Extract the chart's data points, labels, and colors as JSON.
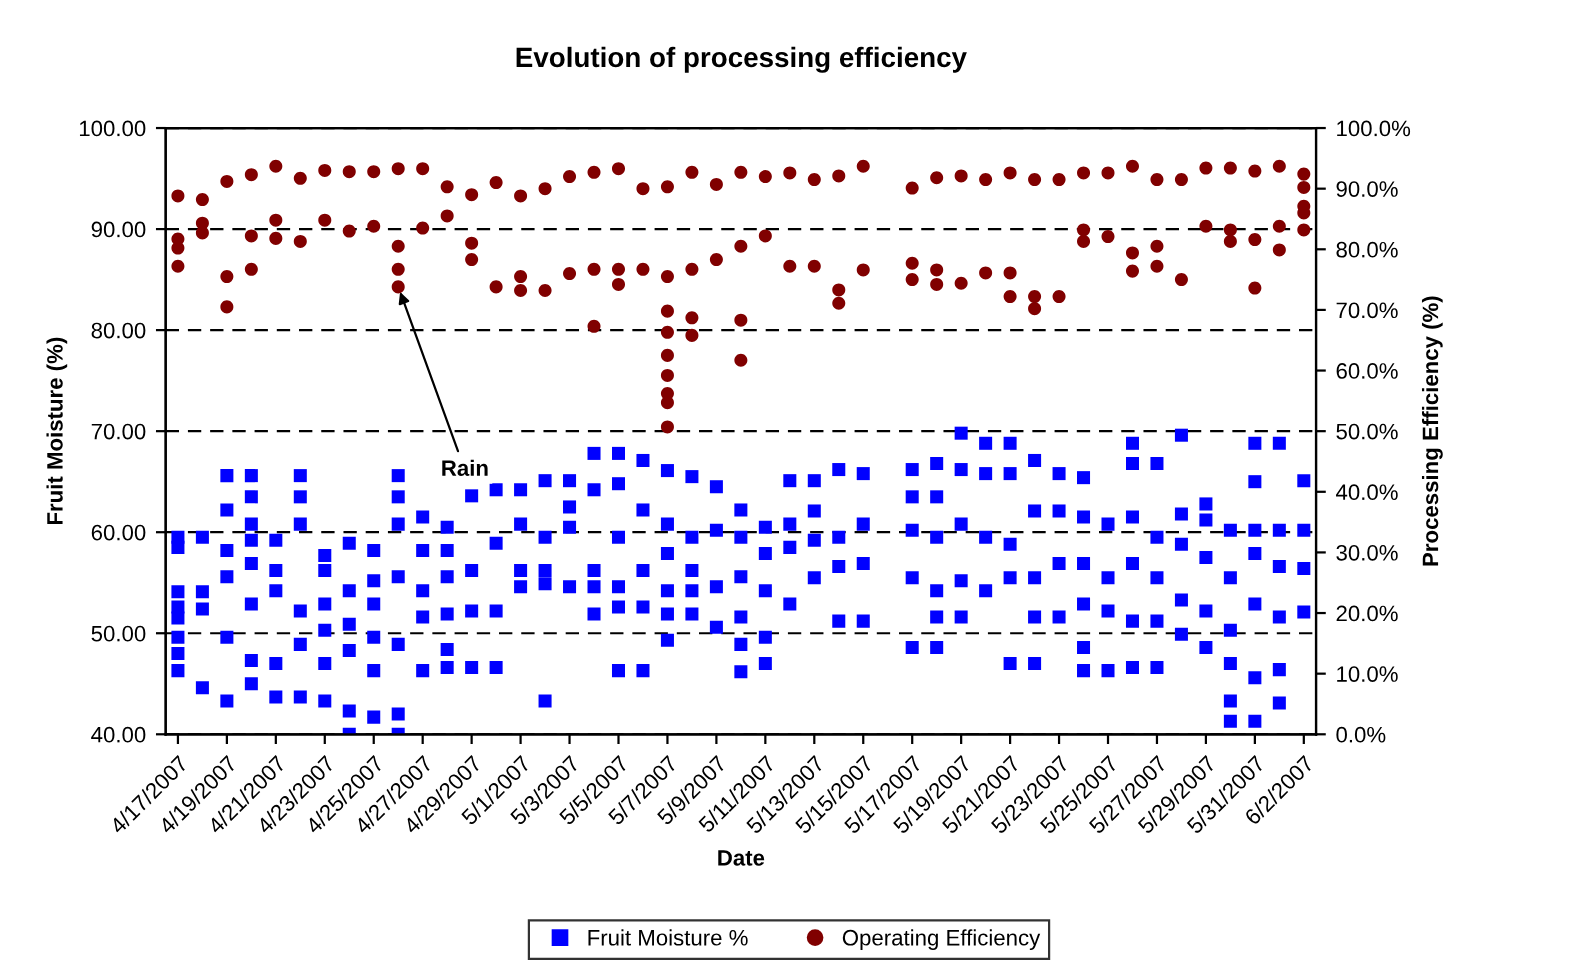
{
  "chart_data": {
    "type": "scatter",
    "title": "Evolution of processing efficiency",
    "xlabel": "Date",
    "ylabel": "Fruit Moisture (%)",
    "y2label": "Processing Efficiency (%)",
    "xlim": [
      "2007-04-16T12:00",
      "2007-06-02T12:00"
    ],
    "xticks": [
      {
        "value": "2007-04-17",
        "label": "4/17/2007"
      },
      {
        "value": "2007-04-19",
        "label": "4/19/2007"
      },
      {
        "value": "2007-04-21",
        "label": "4/21/2007"
      },
      {
        "value": "2007-04-23",
        "label": "4/23/2007"
      },
      {
        "value": "2007-04-25",
        "label": "4/25/2007"
      },
      {
        "value": "2007-04-27",
        "label": "4/27/2007"
      },
      {
        "value": "2007-04-29",
        "label": "4/29/2007"
      },
      {
        "value": "2007-05-01",
        "label": "5/1/2007"
      },
      {
        "value": "2007-05-03",
        "label": "5/3/2007"
      },
      {
        "value": "2007-05-05",
        "label": "5/5/2007"
      },
      {
        "value": "2007-05-07",
        "label": "5/7/2007"
      },
      {
        "value": "2007-05-09",
        "label": "5/9/2007"
      },
      {
        "value": "2007-05-11",
        "label": "5/11/2007"
      },
      {
        "value": "2007-05-13",
        "label": "5/13/2007"
      },
      {
        "value": "2007-05-15",
        "label": "5/15/2007"
      },
      {
        "value": "2007-05-17",
        "label": "5/17/2007"
      },
      {
        "value": "2007-05-19",
        "label": "5/19/2007"
      },
      {
        "value": "2007-05-21",
        "label": "5/21/2007"
      },
      {
        "value": "2007-05-23",
        "label": "5/23/2007"
      },
      {
        "value": "2007-05-25",
        "label": "5/25/2007"
      },
      {
        "value": "2007-05-27",
        "label": "5/27/2007"
      },
      {
        "value": "2007-05-29",
        "label": "5/29/2007"
      },
      {
        "value": "2007-05-31",
        "label": "5/31/2007"
      },
      {
        "value": "2007-06-02",
        "label": "6/2/2007"
      }
    ],
    "ylim": [
      40,
      100
    ],
    "yticks": [
      {
        "value": 40,
        "label": "40.00"
      },
      {
        "value": 50,
        "label": "50.00"
      },
      {
        "value": 60,
        "label": "60.00"
      },
      {
        "value": 70,
        "label": "70.00"
      },
      {
        "value": 80,
        "label": "80.00"
      },
      {
        "value": 90,
        "label": "90.00"
      },
      {
        "value": 100,
        "label": "100.00"
      }
    ],
    "y2lim": [
      0,
      100
    ],
    "y2ticks": [
      {
        "value": 0,
        "label": "0.0%"
      },
      {
        "value": 10,
        "label": "10.0%"
      },
      {
        "value": 20,
        "label": "20.0%"
      },
      {
        "value": 30,
        "label": "30.0%"
      },
      {
        "value": 40,
        "label": "40.0%"
      },
      {
        "value": 50,
        "label": "50.0%"
      },
      {
        "value": 60,
        "label": "60.0%"
      },
      {
        "value": 70,
        "label": "70.0%"
      },
      {
        "value": 80,
        "label": "80.0%"
      },
      {
        "value": 90,
        "label": "90.0%"
      },
      {
        "value": 100,
        "label": "100.0%"
      }
    ],
    "grid": "y",
    "legend": "bottom",
    "annotations": [
      {
        "text": "Rain",
        "x": "2007-04-26",
        "y": 84.3
      }
    ],
    "series": [
      {
        "name": "Fruit Moisture %",
        "color": "#0000ff",
        "marker": "square",
        "x": [
          "2007-04-17",
          "2007-04-17",
          "2007-04-17",
          "2007-04-17",
          "2007-04-17",
          "2007-04-17",
          "2007-04-17",
          "2007-04-17",
          "2007-04-18",
          "2007-04-18",
          "2007-04-18",
          "2007-04-18",
          "2007-04-19",
          "2007-04-19",
          "2007-04-19",
          "2007-04-19",
          "2007-04-19",
          "2007-04-19",
          "2007-04-20",
          "2007-04-20",
          "2007-04-20",
          "2007-04-20",
          "2007-04-20",
          "2007-04-20",
          "2007-04-20",
          "2007-04-20",
          "2007-04-21",
          "2007-04-21",
          "2007-04-21",
          "2007-04-21",
          "2007-04-21",
          "2007-04-22",
          "2007-04-22",
          "2007-04-22",
          "2007-04-22",
          "2007-04-22",
          "2007-04-22",
          "2007-04-23",
          "2007-04-23",
          "2007-04-23",
          "2007-04-23",
          "2007-04-23",
          "2007-04-23",
          "2007-04-24",
          "2007-04-24",
          "2007-04-24",
          "2007-04-24",
          "2007-04-24",
          "2007-04-24",
          "2007-04-25",
          "2007-04-25",
          "2007-04-25",
          "2007-04-25",
          "2007-04-25",
          "2007-04-25",
          "2007-04-26",
          "2007-04-26",
          "2007-04-26",
          "2007-04-26",
          "2007-04-26",
          "2007-04-26",
          "2007-04-26",
          "2007-04-27",
          "2007-04-27",
          "2007-04-27",
          "2007-04-27",
          "2007-04-27",
          "2007-04-28",
          "2007-04-28",
          "2007-04-28",
          "2007-04-28",
          "2007-04-28",
          "2007-04-28",
          "2007-04-29",
          "2007-04-29",
          "2007-04-29",
          "2007-04-29",
          "2007-04-30",
          "2007-04-30",
          "2007-04-30",
          "2007-04-30",
          "2007-05-01",
          "2007-05-01",
          "2007-05-01",
          "2007-05-01",
          "2007-05-02",
          "2007-05-02",
          "2007-05-02",
          "2007-05-02",
          "2007-05-02",
          "2007-05-03",
          "2007-05-03",
          "2007-05-03",
          "2007-05-03",
          "2007-05-04",
          "2007-05-04",
          "2007-05-04",
          "2007-05-04",
          "2007-05-04",
          "2007-05-05",
          "2007-05-05",
          "2007-05-05",
          "2007-05-05",
          "2007-05-05",
          "2007-05-05",
          "2007-05-06",
          "2007-05-06",
          "2007-05-06",
          "2007-05-06",
          "2007-05-06",
          "2007-05-07",
          "2007-05-07",
          "2007-05-07",
          "2007-05-07",
          "2007-05-07",
          "2007-05-07",
          "2007-05-08",
          "2007-05-08",
          "2007-05-08",
          "2007-05-08",
          "2007-05-08",
          "2007-05-09",
          "2007-05-09",
          "2007-05-09",
          "2007-05-09",
          "2007-05-10",
          "2007-05-10",
          "2007-05-10",
          "2007-05-10",
          "2007-05-10",
          "2007-05-10",
          "2007-05-11",
          "2007-05-11",
          "2007-05-11",
          "2007-05-11",
          "2007-05-11",
          "2007-05-12",
          "2007-05-12",
          "2007-05-12",
          "2007-05-12",
          "2007-05-13",
          "2007-05-13",
          "2007-05-13",
          "2007-05-13",
          "2007-05-14",
          "2007-05-14",
          "2007-05-14",
          "2007-05-14",
          "2007-05-15",
          "2007-05-15",
          "2007-05-15",
          "2007-05-15",
          "2007-05-17",
          "2007-05-17",
          "2007-05-17",
          "2007-05-17",
          "2007-05-17",
          "2007-05-18",
          "2007-05-18",
          "2007-05-18",
          "2007-05-18",
          "2007-05-18",
          "2007-05-18",
          "2007-05-19",
          "2007-05-19",
          "2007-05-19",
          "2007-05-19",
          "2007-05-19",
          "2007-05-20",
          "2007-05-20",
          "2007-05-20",
          "2007-05-20",
          "2007-05-21",
          "2007-05-21",
          "2007-05-21",
          "2007-05-21",
          "2007-05-21",
          "2007-05-22",
          "2007-05-22",
          "2007-05-22",
          "2007-05-22",
          "2007-05-22",
          "2007-05-23",
          "2007-05-23",
          "2007-05-23",
          "2007-05-23",
          "2007-05-24",
          "2007-05-24",
          "2007-05-24",
          "2007-05-24",
          "2007-05-24",
          "2007-05-24",
          "2007-05-25",
          "2007-05-25",
          "2007-05-25",
          "2007-05-25",
          "2007-05-26",
          "2007-05-26",
          "2007-05-26",
          "2007-05-26",
          "2007-05-26",
          "2007-05-26",
          "2007-05-27",
          "2007-05-27",
          "2007-05-27",
          "2007-05-27",
          "2007-05-27",
          "2007-05-28",
          "2007-05-28",
          "2007-05-28",
          "2007-05-28",
          "2007-05-28",
          "2007-05-29",
          "2007-05-29",
          "2007-05-29",
          "2007-05-29",
          "2007-05-29",
          "2007-05-30",
          "2007-05-30",
          "2007-05-30",
          "2007-05-30",
          "2007-05-30",
          "2007-05-30",
          "2007-05-31",
          "2007-05-31",
          "2007-05-31",
          "2007-05-31",
          "2007-05-31",
          "2007-05-31",
          "2007-05-31",
          "2007-06-01",
          "2007-06-01",
          "2007-06-01",
          "2007-06-01",
          "2007-06-01",
          "2007-06-01",
          "2007-06-02",
          "2007-06-02",
          "2007-06-02",
          "2007-06-02"
        ],
        "values": [
          59.5,
          58.5,
          54.1,
          52.6,
          51.5,
          49.6,
          48,
          46.3,
          59.5,
          54.1,
          52.4,
          44.6,
          65.6,
          62.2,
          58.2,
          55.6,
          49.6,
          43.3,
          65.6,
          63.5,
          60.8,
          59.2,
          56.9,
          52.9,
          47.3,
          45,
          59.2,
          56.2,
          54.2,
          47,
          43.7,
          65.6,
          63.5,
          60.8,
          52.2,
          48.9,
          43.7,
          57.7,
          56.2,
          52.9,
          50.3,
          47,
          43.3,
          58.9,
          54.2,
          50.9,
          48.3,
          42.3,
          40,
          58.2,
          55.2,
          52.9,
          49.6,
          46.3,
          41.7,
          65.6,
          63.5,
          60.8,
          55.6,
          48.9,
          42,
          40,
          61.5,
          58.2,
          54.2,
          51.6,
          46.3,
          60.5,
          58.2,
          55.6,
          51.9,
          48.4,
          46.6,
          63.6,
          56.2,
          52.2,
          46.6,
          64.2,
          58.9,
          52.2,
          46.6,
          64.2,
          60.8,
          56.2,
          54.6,
          65.1,
          59.5,
          56.2,
          54.9,
          43.3,
          65.1,
          62.5,
          60.5,
          54.6,
          67.8,
          64.2,
          56.2,
          54.6,
          51.9,
          67.8,
          64.8,
          59.5,
          54.6,
          52.6,
          46.3,
          67.1,
          62.2,
          56.2,
          52.6,
          46.3,
          66.1,
          60.8,
          57.9,
          54.2,
          51.9,
          49.3,
          65.5,
          59.5,
          56.2,
          54.2,
          51.9,
          64.5,
          60.2,
          54.6,
          50.6,
          62.2,
          59.5,
          55.6,
          51.6,
          48.9,
          46.2,
          60.5,
          57.9,
          54.2,
          49.6,
          47,
          65.1,
          60.8,
          58.5,
          52.9,
          65.1,
          62.1,
          59.2,
          55.5,
          66.2,
          59.5,
          56.6,
          51.2,
          65.8,
          60.8,
          56.9,
          51.2,
          66.2,
          63.5,
          60.2,
          55.5,
          48.6,
          66.8,
          63.5,
          59.5,
          54.2,
          51.6,
          48.6,
          69.8,
          66.2,
          60.8,
          55.2,
          51.6,
          68.8,
          65.8,
          59.5,
          54.2,
          68.8,
          65.8,
          58.8,
          55.5,
          47,
          67.1,
          62.1,
          55.5,
          51.6,
          47,
          65.8,
          62.1,
          56.9,
          51.6,
          65.4,
          61.5,
          56.9,
          52.9,
          48.6,
          46.3,
          60.8,
          55.5,
          52.2,
          46.3,
          68.8,
          66.8,
          61.5,
          56.9,
          51.2,
          46.6,
          66.8,
          59.5,
          55.5,
          51.2,
          46.6,
          69.6,
          61.8,
          58.8,
          53.3,
          49.9,
          62.8,
          61.2,
          57.5,
          52.2,
          48.6,
          60.2,
          55.5,
          50.3,
          47,
          43.3,
          41.3,
          68.8,
          65,
          60.2,
          57.9,
          52.9,
          45.6,
          41.3,
          68.8,
          60.2,
          56.6,
          51.6,
          46.4,
          43.1,
          65.1,
          60.2,
          56.4,
          52.1
        ]
      },
      {
        "name": "Operating Efficiency",
        "color": "#800000",
        "marker": "circle",
        "axis": "y2",
        "x": [
          "2007-04-17",
          "2007-04-17",
          "2007-04-17",
          "2007-04-17",
          "2007-04-18",
          "2007-04-18",
          "2007-04-18",
          "2007-04-19",
          "2007-04-19",
          "2007-04-19",
          "2007-04-20",
          "2007-04-20",
          "2007-04-20",
          "2007-04-21",
          "2007-04-21",
          "2007-04-21",
          "2007-04-22",
          "2007-04-22",
          "2007-04-23",
          "2007-04-23",
          "2007-04-24",
          "2007-04-24",
          "2007-04-25",
          "2007-04-25",
          "2007-04-26",
          "2007-04-26",
          "2007-04-26",
          "2007-04-26",
          "2007-04-27",
          "2007-04-27",
          "2007-04-28",
          "2007-04-28",
          "2007-04-29",
          "2007-04-29",
          "2007-04-29",
          "2007-04-30",
          "2007-04-30",
          "2007-05-01",
          "2007-05-01",
          "2007-05-01",
          "2007-05-02",
          "2007-05-02",
          "2007-05-03",
          "2007-05-03",
          "2007-05-04",
          "2007-05-04",
          "2007-05-04",
          "2007-05-05",
          "2007-05-05",
          "2007-05-05",
          "2007-05-06",
          "2007-05-06",
          "2007-05-07",
          "2007-05-07",
          "2007-05-07",
          "2007-05-07",
          "2007-05-07",
          "2007-05-07",
          "2007-05-07",
          "2007-05-07",
          "2007-05-07",
          "2007-05-08",
          "2007-05-08",
          "2007-05-08",
          "2007-05-08",
          "2007-05-09",
          "2007-05-09",
          "2007-05-10",
          "2007-05-10",
          "2007-05-10",
          "2007-05-10",
          "2007-05-11",
          "2007-05-11",
          "2007-05-12",
          "2007-05-12",
          "2007-05-13",
          "2007-05-13",
          "2007-05-14",
          "2007-05-14",
          "2007-05-14",
          "2007-05-15",
          "2007-05-15",
          "2007-05-17",
          "2007-05-17",
          "2007-05-17",
          "2007-05-18",
          "2007-05-18",
          "2007-05-18",
          "2007-05-19",
          "2007-05-19",
          "2007-05-20",
          "2007-05-20",
          "2007-05-21",
          "2007-05-21",
          "2007-05-21",
          "2007-05-22",
          "2007-05-22",
          "2007-05-22",
          "2007-05-23",
          "2007-05-23",
          "2007-05-24",
          "2007-05-24",
          "2007-05-24",
          "2007-05-25",
          "2007-05-25",
          "2007-05-26",
          "2007-05-26",
          "2007-05-26",
          "2007-05-27",
          "2007-05-27",
          "2007-05-27",
          "2007-05-28",
          "2007-05-28",
          "2007-05-29",
          "2007-05-29",
          "2007-05-30",
          "2007-05-30",
          "2007-05-30",
          "2007-05-31",
          "2007-05-31",
          "2007-05-31",
          "2007-06-01",
          "2007-06-01",
          "2007-06-01",
          "2007-06-02",
          "2007-06-02",
          "2007-06-02",
          "2007-06-02",
          "2007-06-02"
        ],
        "values": [
          88.8,
          81.7,
          80.2,
          77.2,
          88.2,
          84.3,
          82.7,
          91.2,
          75.5,
          70.5,
          92.3,
          82.2,
          76.7,
          93.7,
          84.8,
          81.8,
          91.7,
          81.3,
          93,
          84.8,
          92.8,
          83,
          92.8,
          83.8,
          93.3,
          80.5,
          76.7,
          73.8,
          93.3,
          83.5,
          90.3,
          85.5,
          89,
          81,
          78.3,
          91,
          73.8,
          88.8,
          75.5,
          73.2,
          90,
          73.2,
          92,
          76,
          92.7,
          76.7,
          67.3,
          93.3,
          76.7,
          74.2,
          90,
          76.7,
          90.3,
          75.5,
          69.8,
          66.3,
          62.5,
          59.2,
          56.2,
          54.7,
          50.7,
          92.7,
          76.7,
          68.7,
          65.8,
          90.7,
          78.3,
          92.7,
          80.5,
          68.3,
          61.7,
          92,
          82.2,
          92.6,
          77.2,
          91.5,
          77.2,
          92.1,
          73.3,
          71.1,
          93.7,
          76.6,
          90.1,
          77.7,
          75,
          91.8,
          76.6,
          74.2,
          92.1,
          74.4,
          91.5,
          76.1,
          92.6,
          76.1,
          72.2,
          91.5,
          72.2,
          70.2,
          91.5,
          72.2,
          92.6,
          83.2,
          81.3,
          92.6,
          82.1,
          93.7,
          79.4,
          76.4,
          91.5,
          80.5,
          77.2,
          91.5,
          75,
          93.4,
          83.8,
          93.4,
          83.2,
          81.3,
          92.9,
          81.6,
          73.6,
          93.7,
          83.8,
          79.9,
          92.4,
          90.2,
          87.1,
          86,
          83.2
        ]
      }
    ]
  }
}
